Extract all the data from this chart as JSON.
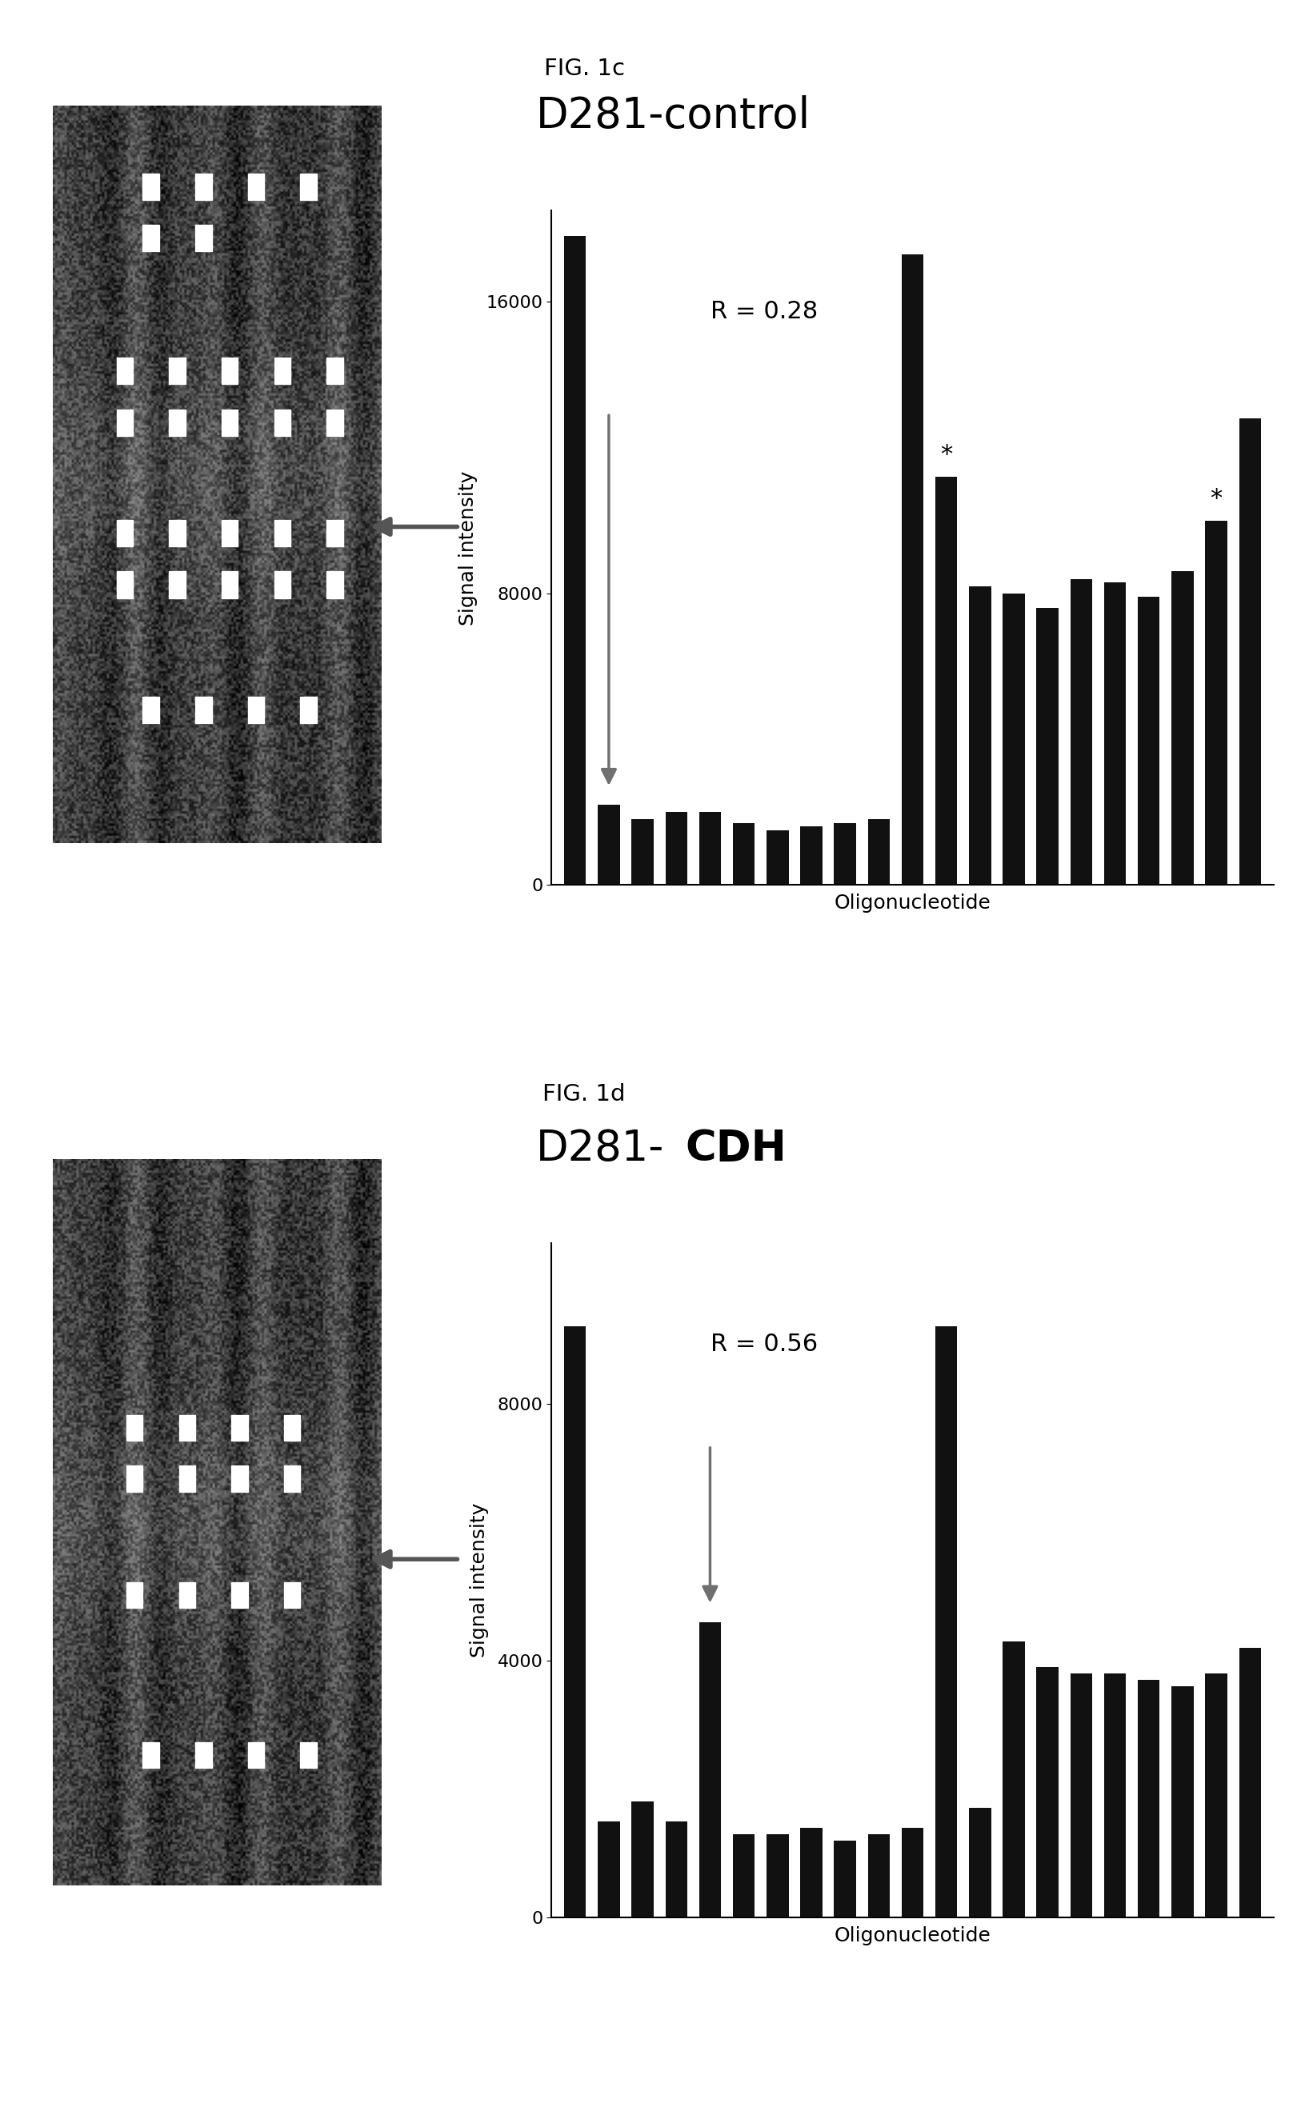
{
  "fig1c_title": "FIG. 1c",
  "fig1d_title": "FIG. 1d",
  "chart1_title": "D281-control",
  "chart2_title_normal": "D281-",
  "chart2_title_bold": "CDH",
  "chart1_R": "R = 0.28",
  "chart2_R": "R = 0.56",
  "ylabel": "Signal intensity",
  "xlabel": "Oligonucleotide",
  "chart1_ylim": [
    0,
    18500
  ],
  "chart1_yticks": [
    0,
    8000,
    16000
  ],
  "chart2_ylim": [
    0,
    10500
  ],
  "chart2_yticks": [
    0,
    4000,
    8000
  ],
  "chart1_bars": [
    17800,
    2200,
    1800,
    2000,
    2000,
    1700,
    1500,
    1600,
    1700,
    1800,
    17300,
    11200,
    8200,
    8000,
    7600,
    8400,
    8300,
    7900,
    8600,
    10000,
    12800
  ],
  "chart2_bars": [
    9200,
    1500,
    1800,
    1500,
    4600,
    1300,
    1300,
    1400,
    1200,
    1300,
    1400,
    9200,
    1700,
    4300,
    3900,
    3800,
    3800,
    3700,
    3600,
    3800,
    4200
  ],
  "chart1_star_indices": [
    11,
    19
  ],
  "chart1_arrow_bar_index": 1,
  "chart2_arrow_bar_index": 4,
  "background_color": "#ffffff",
  "bar_color": "#111111",
  "text_color": "#000000",
  "img1c_spots": [
    [
      [
        0.3,
        0.89
      ],
      [
        0.46,
        0.89
      ],
      [
        0.62,
        0.89
      ],
      [
        0.78,
        0.89
      ]
    ],
    [
      [
        0.3,
        0.82
      ],
      [
        0.46,
        0.82
      ]
    ],
    [
      [
        0.22,
        0.64
      ],
      [
        0.38,
        0.64
      ],
      [
        0.54,
        0.64
      ],
      [
        0.7,
        0.64
      ],
      [
        0.86,
        0.64
      ]
    ],
    [
      [
        0.22,
        0.57
      ],
      [
        0.38,
        0.57
      ],
      [
        0.54,
        0.57
      ],
      [
        0.7,
        0.57
      ],
      [
        0.86,
        0.57
      ]
    ],
    [
      [
        0.22,
        0.42
      ],
      [
        0.38,
        0.42
      ],
      [
        0.54,
        0.42
      ],
      [
        0.7,
        0.42
      ],
      [
        0.86,
        0.42
      ]
    ],
    [
      [
        0.22,
        0.35
      ],
      [
        0.38,
        0.35
      ],
      [
        0.54,
        0.35
      ],
      [
        0.7,
        0.35
      ],
      [
        0.86,
        0.35
      ]
    ],
    [
      [
        0.3,
        0.18
      ],
      [
        0.46,
        0.18
      ],
      [
        0.62,
        0.18
      ],
      [
        0.78,
        0.18
      ]
    ]
  ],
  "img1d_spots": [
    [
      [
        0.25,
        0.63
      ],
      [
        0.41,
        0.63
      ],
      [
        0.57,
        0.63
      ],
      [
        0.73,
        0.63
      ]
    ],
    [
      [
        0.25,
        0.56
      ],
      [
        0.41,
        0.56
      ],
      [
        0.57,
        0.56
      ],
      [
        0.73,
        0.56
      ]
    ],
    [
      [
        0.25,
        0.4
      ],
      [
        0.41,
        0.4
      ],
      [
        0.57,
        0.4
      ],
      [
        0.73,
        0.4
      ]
    ],
    [
      [
        0.3,
        0.18
      ],
      [
        0.46,
        0.18
      ],
      [
        0.62,
        0.18
      ],
      [
        0.78,
        0.18
      ]
    ]
  ]
}
